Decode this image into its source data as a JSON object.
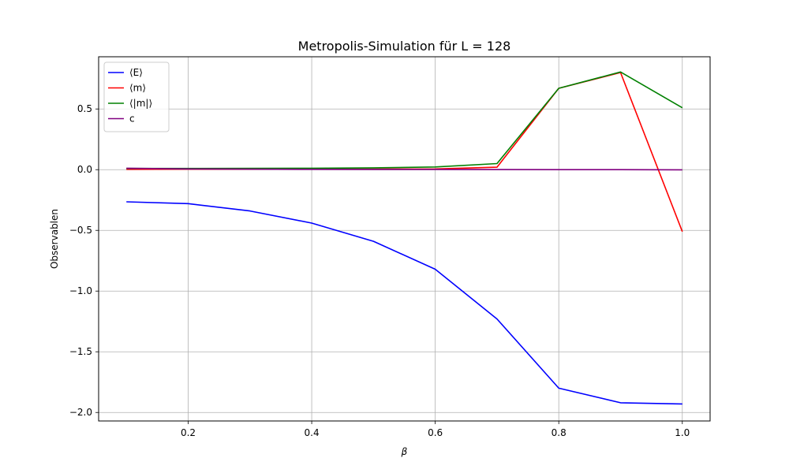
{
  "chart_data": {
    "type": "line",
    "title": "Metropolis-Simulation für L = 128",
    "xlabel": "β",
    "ylabel": "Observablen",
    "xlim": [
      0.055,
      1.045
    ],
    "ylim": [
      -2.07,
      0.93
    ],
    "xticks": [
      0.2,
      0.4,
      0.6,
      0.8,
      1.0
    ],
    "xtick_labels": [
      "0.2",
      "0.4",
      "0.6",
      "0.8",
      "1.0"
    ],
    "yticks": [
      -2.0,
      -1.5,
      -1.0,
      -0.5,
      0.0,
      0.5
    ],
    "ytick_labels": [
      "−2.0",
      "−1.5",
      "−1.0",
      "−0.5",
      "0.0",
      "0.5"
    ],
    "grid": true,
    "legend_position": "top-left",
    "x": [
      0.1,
      0.2,
      0.3,
      0.4,
      0.5,
      0.6,
      0.7,
      0.8,
      0.9,
      1.0
    ],
    "series": [
      {
        "name": "⟨E⟩",
        "color": "#0000ff",
        "values": [
          -0.265,
          -0.28,
          -0.34,
          -0.44,
          -0.59,
          -0.82,
          -1.23,
          -1.8,
          -1.92,
          -1.93
        ]
      },
      {
        "name": "⟨m⟩",
        "color": "#ff0000",
        "values": [
          0.003,
          0.004,
          0.004,
          0.004,
          0.005,
          0.006,
          0.02,
          0.67,
          0.8,
          -0.51
        ]
      },
      {
        "name": "⟨|m|⟩",
        "color": "#008000",
        "values": [
          0.01,
          0.01,
          0.011,
          0.012,
          0.015,
          0.022,
          0.05,
          0.67,
          0.805,
          0.51
        ]
      },
      {
        "name": "c",
        "color": "#800080",
        "values": [
          0.012,
          0.006,
          0.004,
          0.003,
          0.002,
          0.002,
          0.001,
          0.0,
          0.0,
          -0.001
        ]
      }
    ]
  }
}
